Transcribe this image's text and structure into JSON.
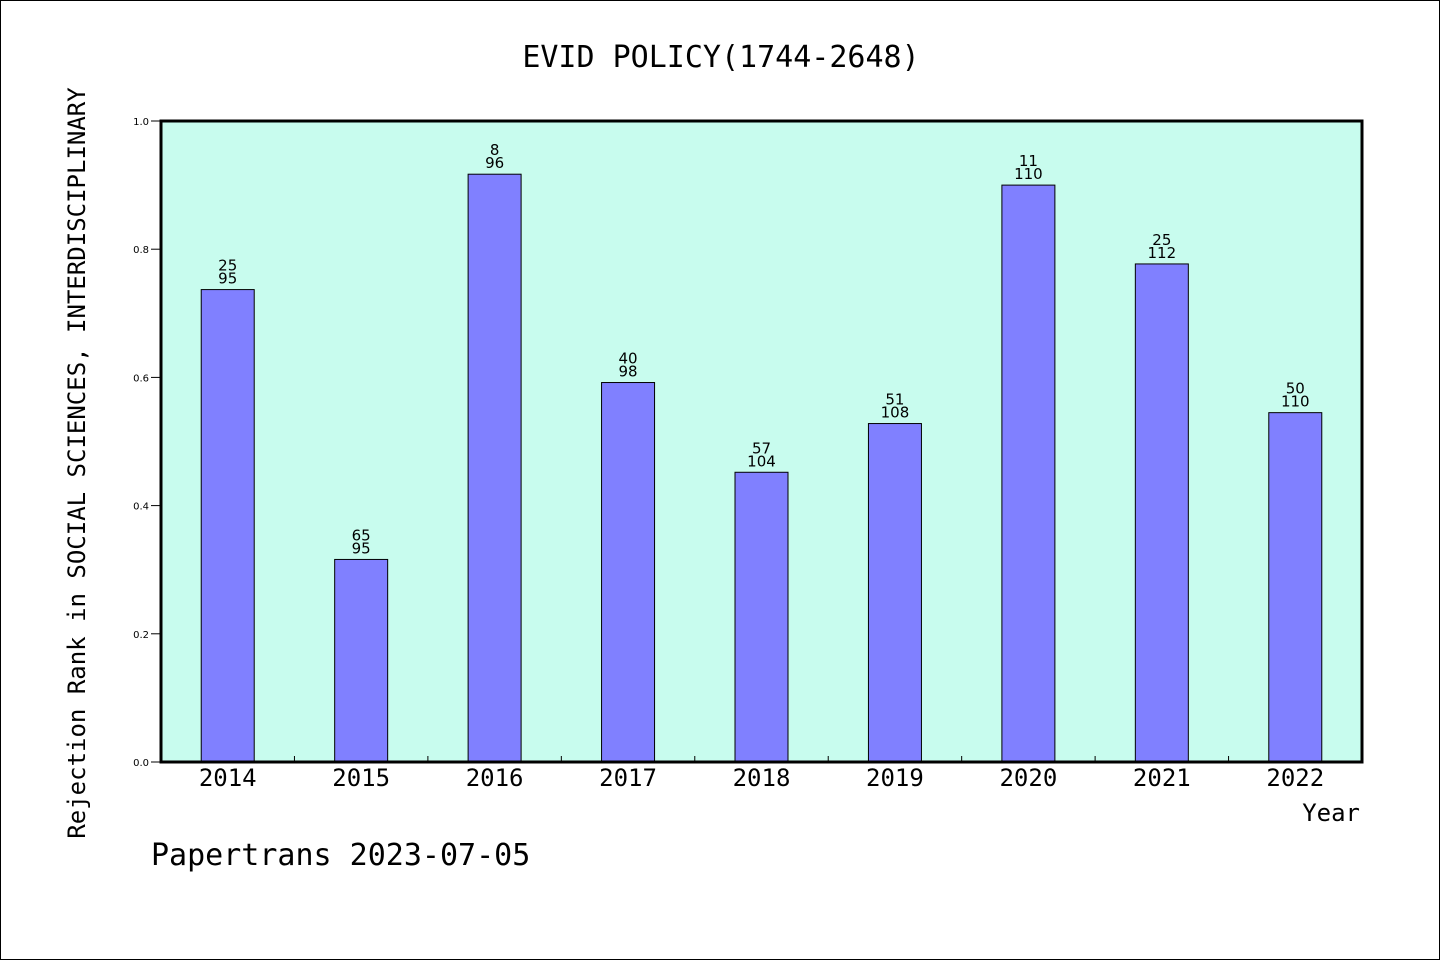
{
  "chart_data": {
    "type": "bar",
    "title": "EVID POLICY(1744-2648)",
    "ylabel": "Rejection Rank in SOCIAL SCIENCES, INTERDISCIPLINARY",
    "xlabel": "Year",
    "footer": "Papertrans 2023-07-05",
    "categories": [
      "2014",
      "2015",
      "2016",
      "2017",
      "2018",
      "2019",
      "2020",
      "2021",
      "2022"
    ],
    "values": [
      0.737,
      0.316,
      0.917,
      0.592,
      0.452,
      0.528,
      0.9,
      0.777,
      0.545
    ],
    "rank_labels": [
      "25",
      "65",
      "8",
      "40",
      "57",
      "51",
      "11",
      "25",
      "50"
    ],
    "total_labels": [
      "95",
      "95",
      "96",
      "98",
      "104",
      "108",
      "110",
      "112",
      "110"
    ],
    "ylim": [
      0,
      1.0
    ],
    "yticks": [
      "0.0",
      "0.2",
      "0.4",
      "0.6",
      "0.8",
      "1.0"
    ],
    "grid": false,
    "legend": false,
    "colors": {
      "plot_background": "#c8fcee",
      "bar_fill": "#8080ff",
      "bar_stroke": "#000000",
      "axis": "#000000"
    }
  }
}
